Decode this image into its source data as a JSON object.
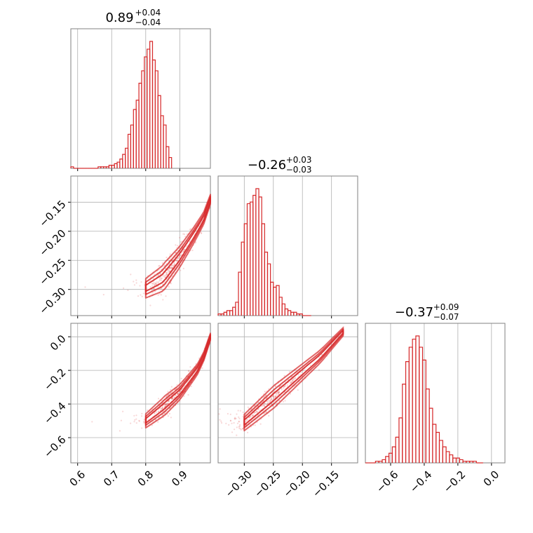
{
  "chart_data": {
    "type": "corner",
    "parameters": [
      {
        "range": [
          0.58,
          0.99
        ],
        "ticks": [
          0.6,
          0.7,
          0.8,
          0.9
        ],
        "tick_labels": [
          "0.6",
          "0.7",
          "0.8",
          "0.9"
        ],
        "median": "0.89",
        "plus": "+0.04",
        "minus": "−0.04",
        "hist": {
          "start": 0.58,
          "width": 0.008,
          "heights": [
            1,
            0,
            0,
            0,
            0,
            0,
            0,
            0,
            0,
            0,
            1,
            1,
            1,
            1,
            2,
            2,
            3,
            4,
            6,
            9,
            13,
            22,
            28,
            38,
            44,
            55,
            63,
            72,
            77,
            82,
            70,
            63,
            47,
            34,
            28,
            14,
            7
          ]
        }
      },
      {
        "range": [
          -0.345,
          -0.105
        ],
        "ticks": [
          -0.3,
          -0.25,
          -0.2,
          -0.15
        ],
        "tick_labels": [
          "−0.30",
          "−0.25",
          "−0.20",
          "−0.15"
        ],
        "median": "−0.26",
        "plus": "+0.03",
        "minus": "−0.03",
        "hist": {
          "start": -0.345,
          "width": 0.005,
          "heights": [
            1,
            1,
            2,
            3,
            3,
            5,
            8,
            26,
            44,
            55,
            67,
            68,
            72,
            76,
            71,
            55,
            38,
            31,
            20,
            17,
            18,
            11,
            7,
            4,
            3,
            2,
            2,
            1,
            1,
            0,
            0,
            0
          ]
        }
      },
      {
        "range": [
          -0.75,
          0.08
        ],
        "ticks": [
          -0.6,
          -0.4,
          -0.2,
          0.0
        ],
        "tick_labels": [
          "−0.6",
          "−0.4",
          "−0.2",
          "0.0"
        ],
        "median": "−0.37",
        "plus": "+0.09",
        "minus": "−0.07",
        "hist": {
          "start": -0.75,
          "width": 0.02,
          "heights": [
            0,
            0,
            0,
            1,
            1,
            2,
            4,
            6,
            10,
            16,
            28,
            49,
            63,
            72,
            77,
            79,
            72,
            64,
            46,
            34,
            24,
            19,
            14,
            10,
            7,
            5,
            3,
            3,
            2,
            1,
            1,
            1,
            1,
            0,
            0
          ]
        }
      }
    ],
    "y_ticks": {
      "row2": {
        "ticks": [
          -0.3,
          -0.25,
          -0.2,
          -0.15
        ],
        "tick_labels": [
          "−0.30",
          "−0.25",
          "−0.20",
          "−0.15"
        ]
      },
      "row3": {
        "ticks": [
          -0.6,
          -0.4,
          -0.2,
          0.0
        ],
        "tick_labels": [
          "−0.6",
          "−0.4",
          "−0.2",
          "0.0"
        ]
      }
    },
    "relation": {
      "p0_vs_p1": [
        [
          0.8,
          -0.298
        ],
        [
          0.85,
          -0.281
        ],
        [
          0.9,
          -0.244
        ],
        [
          0.94,
          -0.208
        ],
        [
          0.97,
          -0.178
        ],
        [
          0.99,
          -0.145
        ]
      ],
      "p0_vs_p2": [
        [
          0.8,
          -0.5
        ],
        [
          0.85,
          -0.42
        ],
        [
          0.9,
          -0.33
        ],
        [
          0.95,
          -0.2
        ],
        [
          0.97,
          -0.12
        ],
        [
          0.99,
          0.0
        ]
      ],
      "p1_vs_p2": [
        [
          -0.3,
          -0.51
        ],
        [
          -0.27,
          -0.42
        ],
        [
          -0.25,
          -0.36
        ],
        [
          -0.22,
          -0.27
        ],
        [
          -0.17,
          -0.12
        ],
        [
          -0.13,
          0.03
        ]
      ]
    },
    "grid": true,
    "color": "#d62728"
  }
}
